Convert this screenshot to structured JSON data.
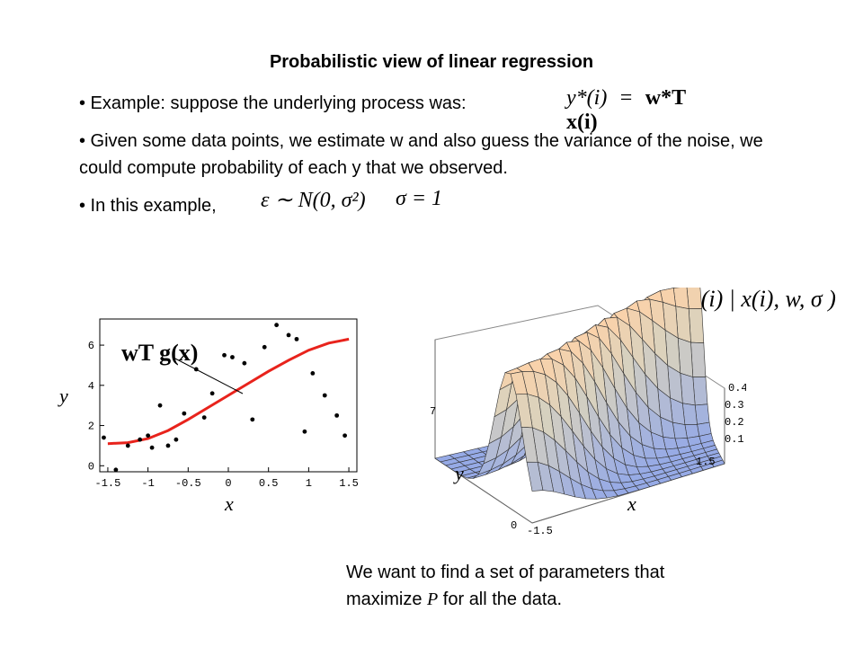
{
  "slide": {
    "title": "Probabilistic view of linear regression",
    "bullets": [
      {
        "text": "• Example: suppose the underlying process was:"
      },
      {
        "text": "• Given some data points, we estimate w and also guess the variance of the noise, we could compute probability of each y that we observed."
      },
      {
        "text": "• In this example,"
      }
    ],
    "bottom_text_line1": "We want to find a set of parameters that",
    "bottom_text_pre": "maximize ",
    "bottom_text_var": "P",
    "bottom_text_post": " for all the data."
  },
  "formulas": {
    "process_lhs": "y*(i)",
    "process_eq": "=",
    "process_rhs": "w*T x(i)",
    "noise": "ε ∼ N(0, σ²)",
    "sigma": "σ = 1",
    "prob": "p( y(i) | x(i), w, σ )",
    "model": "wT g(x)"
  },
  "chart_data": [
    {
      "type": "scatter",
      "title": "",
      "xlabel": "x",
      "ylabel": "y",
      "xlim": [
        -1.6,
        1.6
      ],
      "ylim": [
        -0.3,
        7.3
      ],
      "xticks": [
        "-1.5",
        "-1",
        "-0.5",
        "0",
        "0.5",
        "1",
        "1.5"
      ],
      "xtick_values": [
        -1.5,
        -1,
        -0.5,
        0,
        0.5,
        1,
        1.5
      ],
      "yticks": [
        "0",
        "2",
        "4",
        "6"
      ],
      "ytick_values": [
        0,
        2,
        4,
        6
      ],
      "series": [
        {
          "kind": "points",
          "color": "#000000",
          "x": [
            -1.55,
            -1.4,
            -1.25,
            -1.1,
            -1.0,
            -0.95,
            -0.85,
            -0.75,
            -0.65,
            -0.55,
            -0.4,
            -0.3,
            -0.2,
            -0.05,
            0.05,
            0.2,
            0.3,
            0.45,
            0.6,
            0.75,
            0.85,
            0.95,
            1.05,
            1.2,
            1.35,
            1.45
          ],
          "y": [
            1.4,
            -0.2,
            1.0,
            1.3,
            1.5,
            0.9,
            3.0,
            1.0,
            1.3,
            2.6,
            4.8,
            2.4,
            3.6,
            5.5,
            5.4,
            5.1,
            2.3,
            5.9,
            7.0,
            6.5,
            6.3,
            1.7,
            4.6,
            3.5,
            2.5,
            1.5
          ]
        },
        {
          "kind": "line",
          "color": "#e8231c",
          "x": [
            -1.5,
            -1.25,
            -1.0,
            -0.75,
            -0.5,
            -0.25,
            0.0,
            0.25,
            0.5,
            0.75,
            1.0,
            1.25,
            1.5
          ],
          "y": [
            1.1,
            1.15,
            1.35,
            1.75,
            2.3,
            2.9,
            3.5,
            4.1,
            4.7,
            5.25,
            5.75,
            6.1,
            6.3
          ]
        }
      ]
    },
    {
      "type": "surface",
      "title": "",
      "xlabel": "x",
      "ylabel": "y",
      "x_ticks": [
        "-1.5",
        "1.5"
      ],
      "y_ticks": [
        "0",
        "7"
      ],
      "z_ticks": [
        "0.1",
        "0.2",
        "0.3",
        "0.4"
      ],
      "xlim": [
        -1.5,
        1.5
      ],
      "ylim": [
        0,
        7
      ],
      "zlim": [
        0,
        0.4
      ]
    }
  ]
}
